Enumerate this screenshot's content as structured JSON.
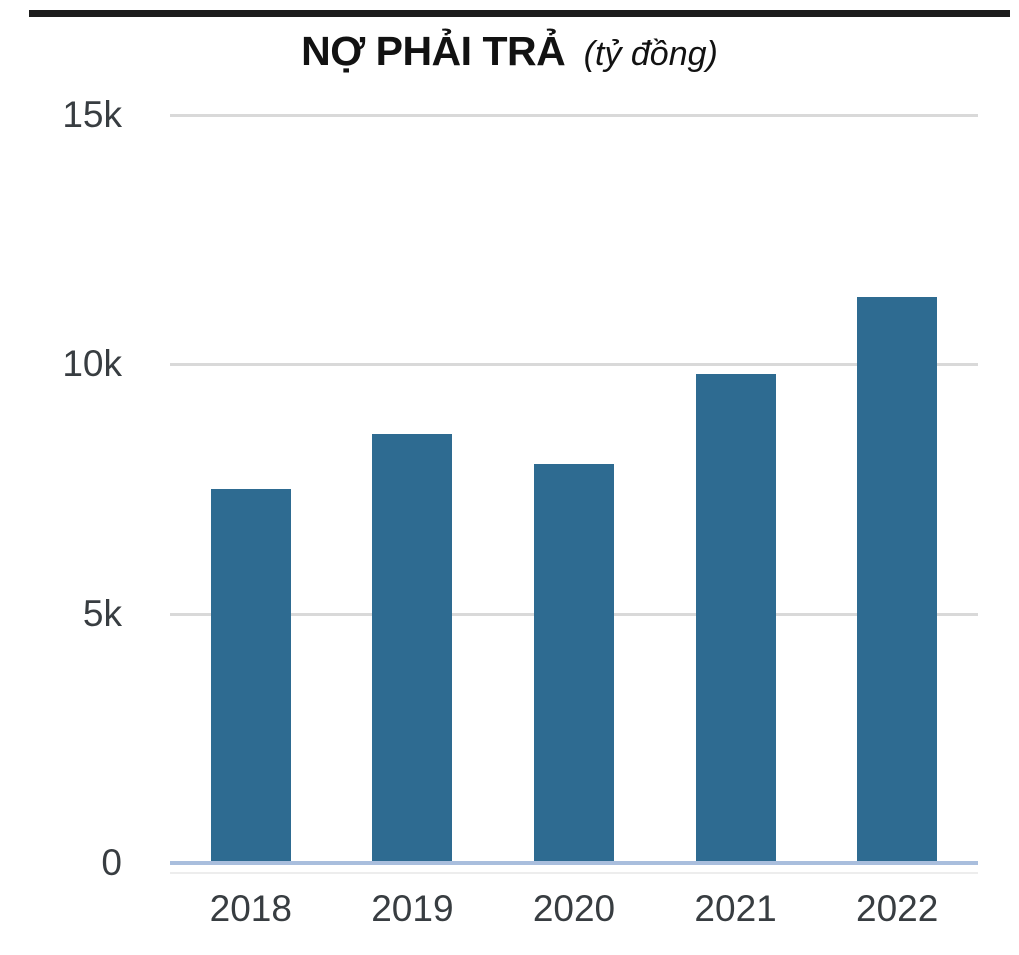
{
  "page": {
    "title": "NỢ PHẢI TRẢ",
    "title_note": "(tỷ đồng)"
  },
  "chart_data": {
    "type": "bar",
    "title": "NỢ PHẢI TRẢ",
    "unit_note": "(tỷ đồng)",
    "categories": [
      "2018",
      "2019",
      "2020",
      "2021",
      "2022"
    ],
    "values": [
      7500,
      8600,
      8000,
      9800,
      11350
    ],
    "ylim": [
      0,
      15000
    ],
    "yticks": [
      {
        "value": 0,
        "label": "0"
      },
      {
        "value": 5000,
        "label": "5k"
      },
      {
        "value": 10000,
        "label": "10k"
      },
      {
        "value": 15000,
        "label": "15k"
      }
    ],
    "grid": true,
    "legend": false,
    "colors": {
      "bar": "#2e6b91",
      "baseline": "#a9bedd",
      "gridline": "#d9d9d9",
      "axis_text": "#383d41",
      "title_text": "#121212",
      "top_rule": "#1c1c1c"
    }
  }
}
